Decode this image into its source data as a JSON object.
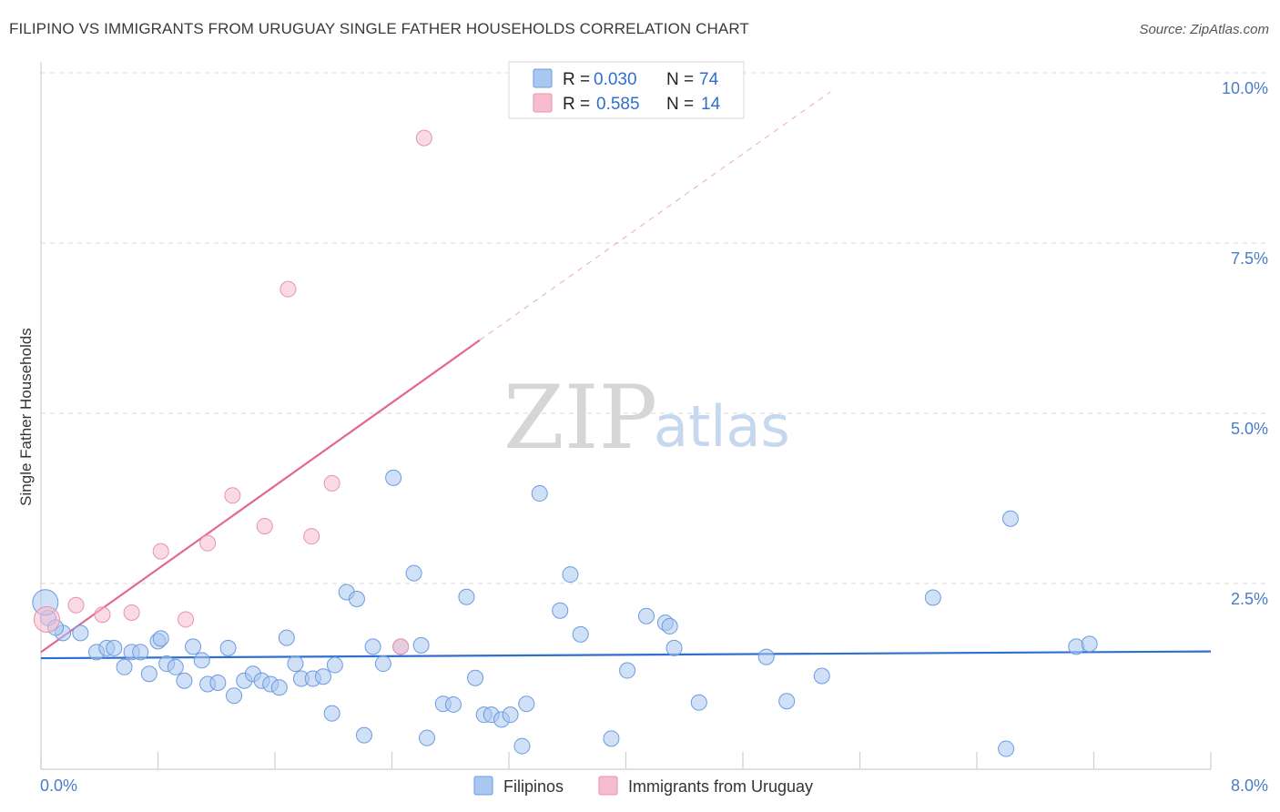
{
  "header": {
    "title": "FILIPINO VS IMMIGRANTS FROM URUGUAY SINGLE FATHER HOUSEHOLDS CORRELATION CHART",
    "source": "Source: ZipAtlas.com"
  },
  "watermark": {
    "zip": "ZIP",
    "atlas": "atlas"
  },
  "colors": {
    "blue": "#2f6fd0",
    "blue_fill": "#a9c7f0",
    "blue_stroke": "#6b9be0",
    "pink": "#e46790",
    "pink_fill": "#f6bccd",
    "pink_stroke": "#e893ad",
    "grid": "#d9d9d9",
    "tick_label": "#4a7cc9"
  },
  "legend": {
    "items": [
      {
        "r_label": "R =",
        "r_value": "0.030",
        "n_label": "N =",
        "n_value": "74"
      },
      {
        "r_label": "R =",
        "r_value": "0.585",
        "n_label": "N =",
        "n_value": "14"
      }
    ]
  },
  "bottom_legend": {
    "items": [
      "Filipinos",
      "Immigrants from Uruguay"
    ]
  },
  "chart_data": {
    "type": "scatter",
    "title": "FILIPINO VS IMMIGRANTS FROM URUGUAY SINGLE FATHER HOUSEHOLDS CORRELATION CHART",
    "xlabel": "",
    "ylabel": "Single Father Households",
    "xlim": [
      0,
      8
    ],
    "ylim": [
      0,
      10.5
    ],
    "x_tick_labels": {
      "left": "0.0%",
      "right": "8.0%"
    },
    "y_ticks": [
      {
        "value": 2.5,
        "label": "2.5%"
      },
      {
        "value": 5.0,
        "label": "5.0%"
      },
      {
        "value": 7.5,
        "label": "7.5%"
      },
      {
        "value": 10.0,
        "label": "10.0%"
      }
    ],
    "series": [
      {
        "name": "Filipinos",
        "R": 0.03,
        "N": 74,
        "trend": {
          "x0": 0,
          "y0": 1.63,
          "x1": 8,
          "y1": 1.73
        },
        "points": [
          [
            0.05,
            2.22
          ],
          [
            0.03,
            2.45
          ],
          [
            0.15,
            2.0
          ],
          [
            0.27,
            2.0
          ],
          [
            0.38,
            1.72
          ],
          [
            0.45,
            1.78
          ],
          [
            0.5,
            1.78
          ],
          [
            0.57,
            1.5
          ],
          [
            0.62,
            1.72
          ],
          [
            0.68,
            1.72
          ],
          [
            0.74,
            1.4
          ],
          [
            0.8,
            1.88
          ],
          [
            0.86,
            1.55
          ],
          [
            0.92,
            1.5
          ],
          [
            0.98,
            1.3
          ],
          [
            1.04,
            1.8
          ],
          [
            1.1,
            1.6
          ],
          [
            1.14,
            1.25
          ],
          [
            1.21,
            1.27
          ],
          [
            1.28,
            1.78
          ],
          [
            1.32,
            1.08
          ],
          [
            1.39,
            1.3
          ],
          [
            1.45,
            1.4
          ],
          [
            1.51,
            1.3
          ],
          [
            1.57,
            1.25
          ],
          [
            1.63,
            1.2
          ],
          [
            1.68,
            1.93
          ],
          [
            1.74,
            1.55
          ],
          [
            1.78,
            1.33
          ],
          [
            1.86,
            1.33
          ],
          [
            1.93,
            1.36
          ],
          [
            1.99,
            0.82
          ],
          [
            2.01,
            1.53
          ],
          [
            2.09,
            2.6
          ],
          [
            2.16,
            2.5
          ],
          [
            2.21,
            0.5
          ],
          [
            2.27,
            1.8
          ],
          [
            2.34,
            1.55
          ],
          [
            2.41,
            4.28
          ],
          [
            2.46,
            1.8
          ],
          [
            2.55,
            2.88
          ],
          [
            2.6,
            1.82
          ],
          [
            2.64,
            0.46
          ],
          [
            2.75,
            0.96
          ],
          [
            2.82,
            0.95
          ],
          [
            2.91,
            2.53
          ],
          [
            2.97,
            1.34
          ],
          [
            3.03,
            0.8
          ],
          [
            3.08,
            0.8
          ],
          [
            3.15,
            0.73
          ],
          [
            3.21,
            0.8
          ],
          [
            3.29,
            0.34
          ],
          [
            3.32,
            0.96
          ],
          [
            3.41,
            4.05
          ],
          [
            3.55,
            2.33
          ],
          [
            3.62,
            2.86
          ],
          [
            3.69,
            1.98
          ],
          [
            3.9,
            0.45
          ],
          [
            4.01,
            1.45
          ],
          [
            4.14,
            2.25
          ],
          [
            4.27,
            2.15
          ],
          [
            4.3,
            2.1
          ],
          [
            4.33,
            1.78
          ],
          [
            4.5,
            0.98
          ],
          [
            4.96,
            1.65
          ],
          [
            5.1,
            1.0
          ],
          [
            5.34,
            1.37
          ],
          [
            6.1,
            2.52
          ],
          [
            6.6,
            0.3
          ],
          [
            6.63,
            3.68
          ],
          [
            7.08,
            1.8
          ],
          [
            7.17,
            1.84
          ],
          [
            0.1,
            2.08
          ],
          [
            0.82,
            1.92
          ]
        ]
      },
      {
        "name": "Immigrants from Uruguay",
        "R": 0.585,
        "N": 14,
        "trend": {
          "x0": 0,
          "y0": 1.72,
          "x1": 3.0,
          "y1": 6.3
        },
        "trend_extension": {
          "x0": 3.0,
          "y0": 6.3,
          "x1": 5.4,
          "y1": 9.95
        },
        "points": [
          [
            0.04,
            2.2
          ],
          [
            0.24,
            2.41
          ],
          [
            0.42,
            2.27
          ],
          [
            0.62,
            2.3
          ],
          [
            0.82,
            3.2
          ],
          [
            0.99,
            2.2
          ],
          [
            1.14,
            3.32
          ],
          [
            1.31,
            4.02
          ],
          [
            1.53,
            3.57
          ],
          [
            1.69,
            7.05
          ],
          [
            1.85,
            3.42
          ],
          [
            1.99,
            4.2
          ],
          [
            2.46,
            1.8
          ],
          [
            2.62,
            9.27
          ]
        ]
      }
    ]
  }
}
